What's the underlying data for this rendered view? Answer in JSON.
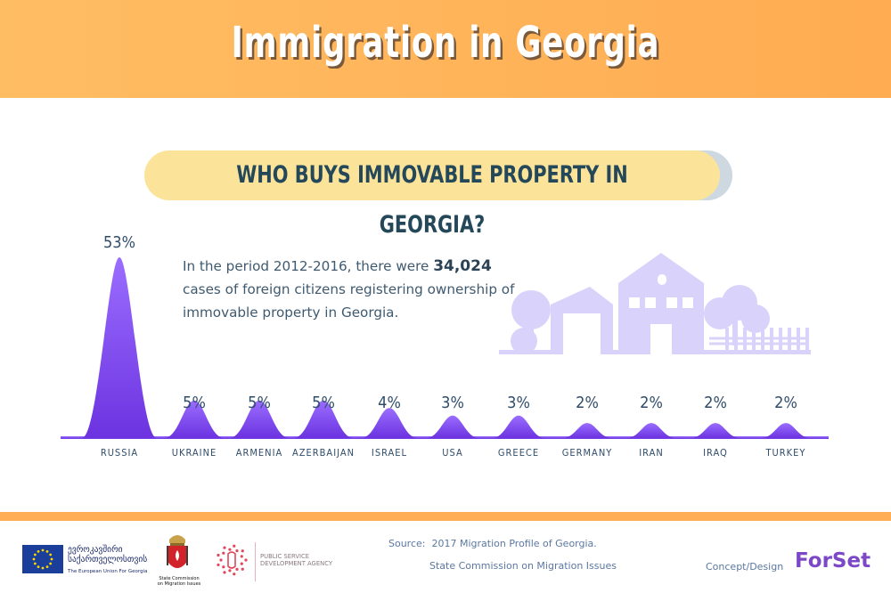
{
  "header": {
    "title": "Immigration in Georgia"
  },
  "subtitle": "WHO BUYS IMMOVABLE PROPERTY IN GEORGIA?",
  "description": {
    "before": "In the period 2012-2016, there were ",
    "highlight": "34,024",
    "after": " cases of foreign citizens registering ownership of immovable property in Georgia."
  },
  "chart_data": {
    "type": "area",
    "title": "WHO BUYS IMMOVABLE PROPERTY IN GEORGIA?",
    "categories": [
      "RUSSIA",
      "UKRAINE",
      "ARMENIA",
      "AZERBAIJAN",
      "ISRAEL",
      "USA",
      "GREECE",
      "GERMANY",
      "IRAN",
      "IRAQ",
      "TURKEY"
    ],
    "values": [
      53,
      5,
      5,
      5,
      4,
      3,
      3,
      2,
      2,
      2,
      2
    ],
    "value_labels": [
      "53%",
      "5%",
      "5%",
      "5%",
      "4%",
      "3%",
      "3%",
      "2%",
      "2%",
      "2%",
      "2%"
    ],
    "unit": "%",
    "ylim": [
      0,
      55
    ],
    "grid": false,
    "legend": "none",
    "colors": {
      "area_top": "#9a6dff",
      "area_bottom": "#6c33e0",
      "labels": "#2f4d6b"
    }
  },
  "footer": {
    "eu_text_line1": "ევროკავშირი",
    "eu_text_line2": "საქართველოსთვის",
    "eu_text_en": "The European Union For Georgia",
    "commission_line1": "State Commission",
    "commission_line2": "on Migration Issues",
    "psda_line1": "PUBLIC SERVICE",
    "psda_line2": "DEVELOPMENT AGENCY",
    "source_label": "Source:",
    "source_line1": "2017 Migration Profile of Georgia.",
    "source_line2": "State Commission on Migration Issues",
    "concept_label": "Concept/Design",
    "brand": "ForSet"
  },
  "colors": {
    "header": "#ffae55",
    "title_text": "#ffffff",
    "pill": "#fbe49a",
    "pill_text": "#24485a",
    "houses": "#d9d3fb",
    "accent_purple": "#7d48c8"
  },
  "icons": [
    "eu-flag-icon",
    "coat-of-arms-icon",
    "psda-network-icon",
    "houses-illustration-icon"
  ]
}
